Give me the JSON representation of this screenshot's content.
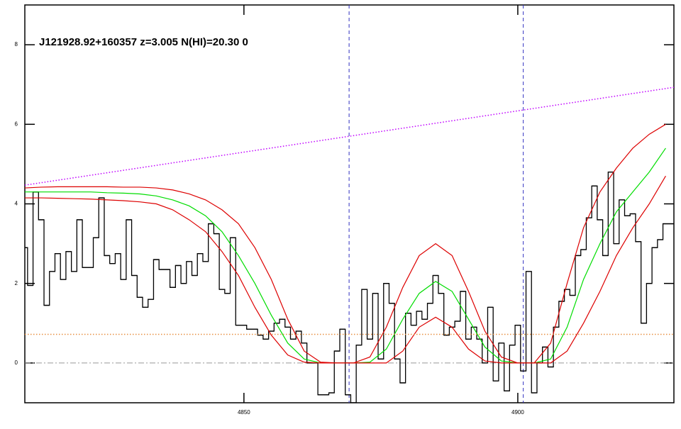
{
  "chart_data": {
    "type": "line",
    "title": "J121928.92+160357 z=3.005 N(HI)=20.30 0",
    "xlim": [
      4810,
      4928.5
    ],
    "ylim": [
      -1,
      9
    ],
    "xticks": [
      4850,
      4900
    ],
    "yticks": [
      0,
      2,
      4,
      6,
      8
    ],
    "hline": 0,
    "hline_color": "#999999",
    "vlines": [
      4869.2,
      4901.0
    ],
    "vline_color": "#3030c0",
    "series": [
      {
        "name": "flux",
        "color": "#000000",
        "style": "step",
        "x": [
          4810,
          4811,
          4812,
          4813,
          4814,
          4815,
          4816,
          4817,
          4818,
          4819,
          4820,
          4821,
          4822,
          4823,
          4824,
          4825,
          4826,
          4827,
          4828,
          4829,
          4830,
          4831,
          4832,
          4833,
          4834,
          4835,
          4836,
          4837,
          4838,
          4839,
          4840,
          4841,
          4842,
          4843,
          4844,
          4845,
          4846,
          4847,
          4848,
          4849,
          4850,
          4851,
          4852,
          4853,
          4854,
          4855,
          4856,
          4857,
          4858,
          4859,
          4860,
          4861,
          4862,
          4863,
          4864,
          4865,
          4866,
          4867,
          4868,
          4869,
          4870,
          4871,
          4872,
          4873,
          4874,
          4875,
          4876,
          4877,
          4878,
          4879,
          4880,
          4881,
          4882,
          4883,
          4884,
          4885,
          4886,
          4887,
          4888,
          4889,
          4890,
          4891,
          4892,
          4893,
          4894,
          4895,
          4896,
          4897,
          4898,
          4899,
          4900,
          4901,
          4902,
          4903,
          4904,
          4905,
          4906,
          4907,
          4908,
          4909,
          4910,
          4911,
          4912,
          4913,
          4914,
          4915,
          4916,
          4917,
          4918,
          4919,
          4920,
          4921,
          4922,
          4923,
          4924,
          4925,
          4926,
          4927,
          4928
        ],
        "values": [
          2.9,
          1.95,
          4.3,
          3.6,
          1.45,
          2.3,
          2.75,
          2.1,
          2.8,
          2.3,
          3.6,
          2.4,
          2.4,
          3.15,
          4.15,
          2.7,
          2.5,
          2.75,
          2.1,
          3.6,
          2.2,
          1.65,
          1.4,
          1.6,
          2.6,
          2.35,
          2.35,
          1.9,
          2.45,
          2.0,
          2.55,
          2.2,
          2.75,
          2.55,
          3.5,
          3.25,
          1.85,
          1.75,
          3.15,
          0.95,
          0.95,
          0.85,
          0.85,
          0.7,
          0.6,
          0.8,
          1.0,
          1.1,
          0.9,
          0.6,
          0.8,
          0.5,
          0.0,
          0.0,
          -0.8,
          -0.8,
          -0.75,
          0.3,
          0.85,
          -0.8,
          -1.0,
          0.45,
          1.85,
          0.6,
          1.75,
          0.1,
          2.0,
          1.5,
          0.1,
          -0.5,
          1.25,
          0.95,
          1.3,
          1.1,
          1.5,
          2.2,
          1.75,
          0.7,
          0.9,
          1.05,
          1.8,
          0.6,
          0.9,
          0.6,
          0.0,
          1.4,
          -0.45,
          0.5,
          -0.7,
          0.45,
          0.95,
          -0.2,
          2.3,
          -0.75,
          0.0,
          0.4,
          -0.1,
          0.9,
          1.55,
          1.85,
          1.7,
          2.7,
          2.85,
          3.65,
          4.45,
          3.6,
          2.7,
          4.8,
          3.0,
          4.1,
          3.7,
          3.75,
          3.05,
          1.0,
          2.0,
          2.9,
          3.1,
          3.5,
          3.5
        ]
      },
      {
        "name": "model",
        "color": "#00dd00",
        "style": "solid",
        "x": [
          4810,
          4813,
          4816,
          4819,
          4822,
          4825,
          4828,
          4831,
          4834,
          4837,
          4840,
          4843,
          4846,
          4849,
          4852,
          4855,
          4858,
          4861,
          4864,
          4867,
          4870,
          4873,
          4876,
          4879,
          4882,
          4885,
          4888,
          4891,
          4894,
          4897,
          4900,
          4903,
          4906,
          4909,
          4912,
          4915,
          4918,
          4921,
          4924,
          4927
        ],
        "values": [
          4.3,
          4.3,
          4.3,
          4.3,
          4.3,
          4.28,
          4.27,
          4.25,
          4.2,
          4.1,
          3.95,
          3.7,
          3.3,
          2.7,
          2.0,
          1.2,
          0.5,
          0.1,
          0,
          0,
          0,
          0.02,
          0.35,
          1.1,
          1.75,
          2.05,
          1.8,
          1.1,
          0.4,
          0.05,
          0,
          0,
          0.1,
          0.9,
          2.1,
          3.0,
          3.8,
          4.3,
          4.8,
          5.4
        ]
      },
      {
        "name": "upper",
        "color": "#dd0000",
        "style": "solid",
        "x": [
          4810,
          4813,
          4816,
          4819,
          4822,
          4825,
          4828,
          4831,
          4834,
          4837,
          4840,
          4843,
          4846,
          4849,
          4852,
          4855,
          4858,
          4861,
          4864,
          4867,
          4870,
          4873,
          4876,
          4879,
          4882,
          4885,
          4888,
          4891,
          4894,
          4897,
          4900,
          4903,
          4906,
          4909,
          4912,
          4915,
          4918,
          4921,
          4924,
          4927
        ],
        "values": [
          4.4,
          4.42,
          4.43,
          4.43,
          4.43,
          4.43,
          4.42,
          4.42,
          4.4,
          4.35,
          4.25,
          4.1,
          3.85,
          3.5,
          2.9,
          2.1,
          1.1,
          0.3,
          0.02,
          0,
          0,
          0.15,
          0.9,
          1.9,
          2.7,
          3.0,
          2.7,
          1.8,
          0.8,
          0.15,
          0,
          0,
          0.5,
          2.0,
          3.4,
          4.3,
          4.9,
          5.4,
          5.75,
          6.0
        ]
      },
      {
        "name": "lower",
        "color": "#dd0000",
        "style": "solid",
        "x": [
          4810,
          4813,
          4816,
          4819,
          4822,
          4825,
          4828,
          4831,
          4834,
          4837,
          4840,
          4843,
          4846,
          4849,
          4852,
          4855,
          4858,
          4861,
          4864,
          4867,
          4870,
          4873,
          4876,
          4879,
          4882,
          4885,
          4888,
          4891,
          4894,
          4897,
          4900,
          4903,
          4906,
          4909,
          4912,
          4915,
          4918,
          4921,
          4924,
          4927
        ],
        "values": [
          4.15,
          4.15,
          4.14,
          4.13,
          4.12,
          4.1,
          4.08,
          4.05,
          4.0,
          3.85,
          3.6,
          3.3,
          2.8,
          2.2,
          1.4,
          0.7,
          0.2,
          0.02,
          0,
          0,
          0,
          0,
          0,
          0.3,
          0.9,
          1.15,
          0.9,
          0.35,
          0.05,
          0,
          0,
          0,
          0,
          0.3,
          1.0,
          1.8,
          2.7,
          3.4,
          4.0,
          4.7
        ]
      },
      {
        "name": "continuum",
        "color": "#c000ff",
        "style": "dotted",
        "x": [
          4810,
          4928.5
        ],
        "values": [
          4.47,
          6.93
        ]
      },
      {
        "name": "error",
        "color": "#e89040",
        "style": "dotted",
        "x": [
          4810,
          4928.5
        ],
        "values": [
          0.72,
          0.72
        ]
      }
    ]
  }
}
